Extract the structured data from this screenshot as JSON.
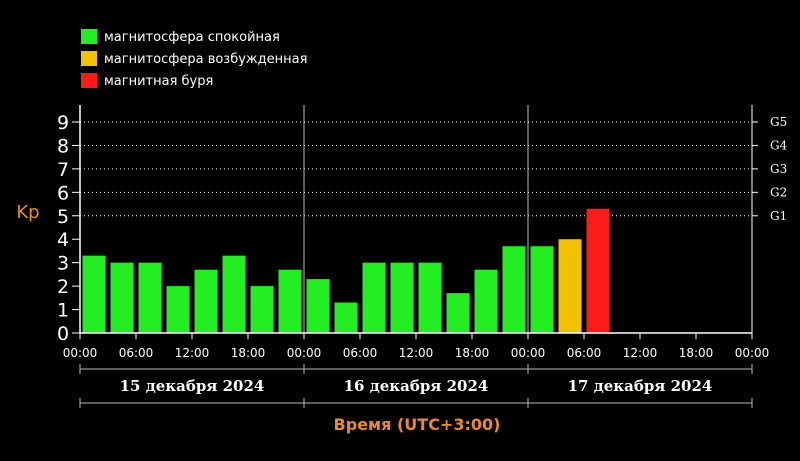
{
  "legend": [
    {
      "label": "магнитосфера спокойная",
      "color": "#22ee22"
    },
    {
      "label": "магнитосфера возбужденная",
      "color": "#f2c200"
    },
    {
      "label": "магнитная буря",
      "color": "#ff1a1a"
    }
  ],
  "colors": {
    "background": "#000000",
    "axis_label": "#e8892a",
    "text": "#ffffff",
    "grid": "#ffffff"
  },
  "chart_data": {
    "type": "bar",
    "ylabel": "Kp",
    "xlabel": "Время (UTC+3:00)",
    "ylim": [
      0,
      9
    ],
    "yticks": [
      "0",
      "1",
      "2",
      "3",
      "4",
      "5",
      "6",
      "7",
      "8",
      "9"
    ],
    "storm_ticks": [
      {
        "label": "G1",
        "level": 5
      },
      {
        "label": "G2",
        "level": 6
      },
      {
        "label": "G3",
        "level": 7
      },
      {
        "label": "G4",
        "level": 8
      },
      {
        "label": "G5",
        "level": 9
      }
    ],
    "xticks": [
      "00:00",
      "06:00",
      "12:00",
      "18:00",
      "00:00",
      "06:00",
      "12:00",
      "18:00",
      "00:00",
      "06:00",
      "12:00",
      "18:00",
      "00:00"
    ],
    "days": [
      "15 декабря 2024",
      "16 декабря 2024",
      "17 декабря 2024"
    ],
    "interval_hours": 3,
    "grid": "horizontal dotted",
    "legend_position": "top-left",
    "values": [
      3.3,
      3.0,
      3.0,
      2.0,
      2.7,
      3.3,
      2.0,
      2.7,
      2.3,
      1.3,
      3.0,
      3.0,
      3.0,
      1.7,
      2.7,
      3.7,
      3.7,
      4.0,
      5.3
    ],
    "level_colors": [
      "green",
      "green",
      "green",
      "green",
      "green",
      "green",
      "green",
      "green",
      "green",
      "green",
      "green",
      "green",
      "green",
      "green",
      "green",
      "green",
      "green",
      "yellow",
      "red"
    ]
  }
}
